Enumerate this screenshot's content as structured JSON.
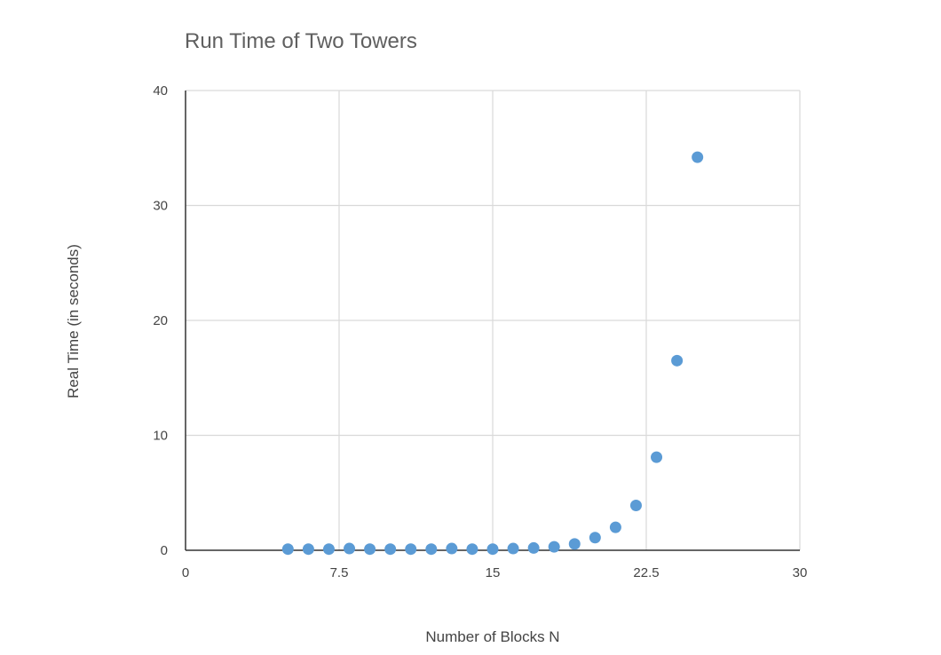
{
  "chart_data": {
    "type": "scatter",
    "title": "Run Time of Two Towers",
    "xlabel": "Number of Blocks N",
    "ylabel": "Real Time (in seconds)",
    "xlim": [
      0,
      30
    ],
    "ylim": [
      0,
      40
    ],
    "xticks": [
      0,
      7.5,
      15,
      22.5,
      30
    ],
    "xtick_labels": [
      "0",
      "7.5",
      "15",
      "22.5",
      "30"
    ],
    "yticks": [
      0,
      10,
      20,
      30,
      40
    ],
    "ytick_labels": [
      "0",
      "10",
      "20",
      "30",
      "40"
    ],
    "grid": true,
    "legend": "none",
    "series": [
      {
        "color": "#5b9bd5",
        "points": [
          {
            "x": 5,
            "y": 0.1
          },
          {
            "x": 6,
            "y": 0.1
          },
          {
            "x": 7,
            "y": 0.1
          },
          {
            "x": 8,
            "y": 0.15
          },
          {
            "x": 9,
            "y": 0.1
          },
          {
            "x": 10,
            "y": 0.1
          },
          {
            "x": 11,
            "y": 0.1
          },
          {
            "x": 12,
            "y": 0.1
          },
          {
            "x": 13,
            "y": 0.15
          },
          {
            "x": 14,
            "y": 0.1
          },
          {
            "x": 15,
            "y": 0.1
          },
          {
            "x": 16,
            "y": 0.15
          },
          {
            "x": 17,
            "y": 0.2
          },
          {
            "x": 18,
            "y": 0.3
          },
          {
            "x": 19,
            "y": 0.55
          },
          {
            "x": 20,
            "y": 1.1
          },
          {
            "x": 21,
            "y": 2.0
          },
          {
            "x": 22,
            "y": 3.9
          },
          {
            "x": 23,
            "y": 8.1
          },
          {
            "x": 24,
            "y": 16.5
          },
          {
            "x": 25,
            "y": 34.2
          }
        ]
      }
    ]
  },
  "colors": {
    "point": "#5b9bd5",
    "grid": "#d9d9d9",
    "axis": "#333333"
  }
}
